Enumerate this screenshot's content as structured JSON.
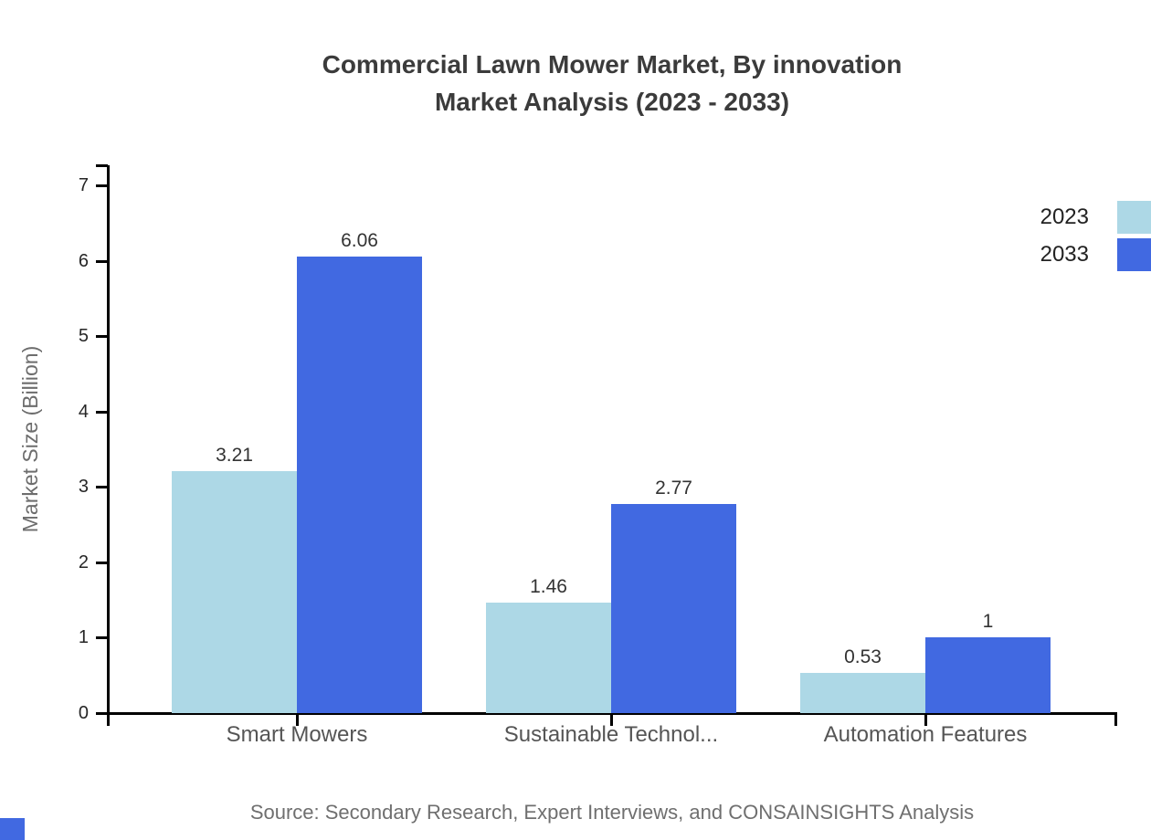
{
  "title": {
    "line1": "Commercial Lawn Mower Market, By innovation",
    "line2": "Market Analysis (2023 - 2033)"
  },
  "chart_data": {
    "type": "bar",
    "categories": [
      "Smart Mowers",
      "Sustainable Technol...",
      "Automation Features"
    ],
    "series": [
      {
        "name": "2023",
        "color": "#ADD8E6",
        "values": [
          3.21,
          1.46,
          0.53
        ]
      },
      {
        "name": "2033",
        "color": "#4169E1",
        "values": [
          6.06,
          2.77,
          1
        ]
      }
    ],
    "value_labels": [
      "3.21",
      "6.06",
      "1.46",
      "2.77",
      "0.53",
      "1"
    ],
    "title": "Commercial Lawn Mower Market, By innovation Market Analysis (2023 - 2033)",
    "xlabel": "",
    "ylabel": "Market Size (Billion)",
    "ylim": [
      0,
      7
    ],
    "yticks": [
      0,
      1,
      2,
      3,
      4,
      5,
      6,
      7
    ],
    "grid": false,
    "legend_position": "top-right"
  },
  "legend": [
    {
      "label": "2023",
      "color": "#ADD8E6"
    },
    {
      "label": "2033",
      "color": "#4169E1"
    }
  ],
  "source": "Source: Secondary Research, Expert Interviews, and CONSAINSIGHTS Analysis",
  "colors": {
    "series_2023": "#ADD8E6",
    "series_2033": "#4169E1",
    "axis": "#000000",
    "title_text": "#3b3b3b",
    "axis_label_text": "#555555",
    "value_label_text": "#333333",
    "source_text": "#6f6f6f",
    "corner_mark": "#4169E1"
  }
}
